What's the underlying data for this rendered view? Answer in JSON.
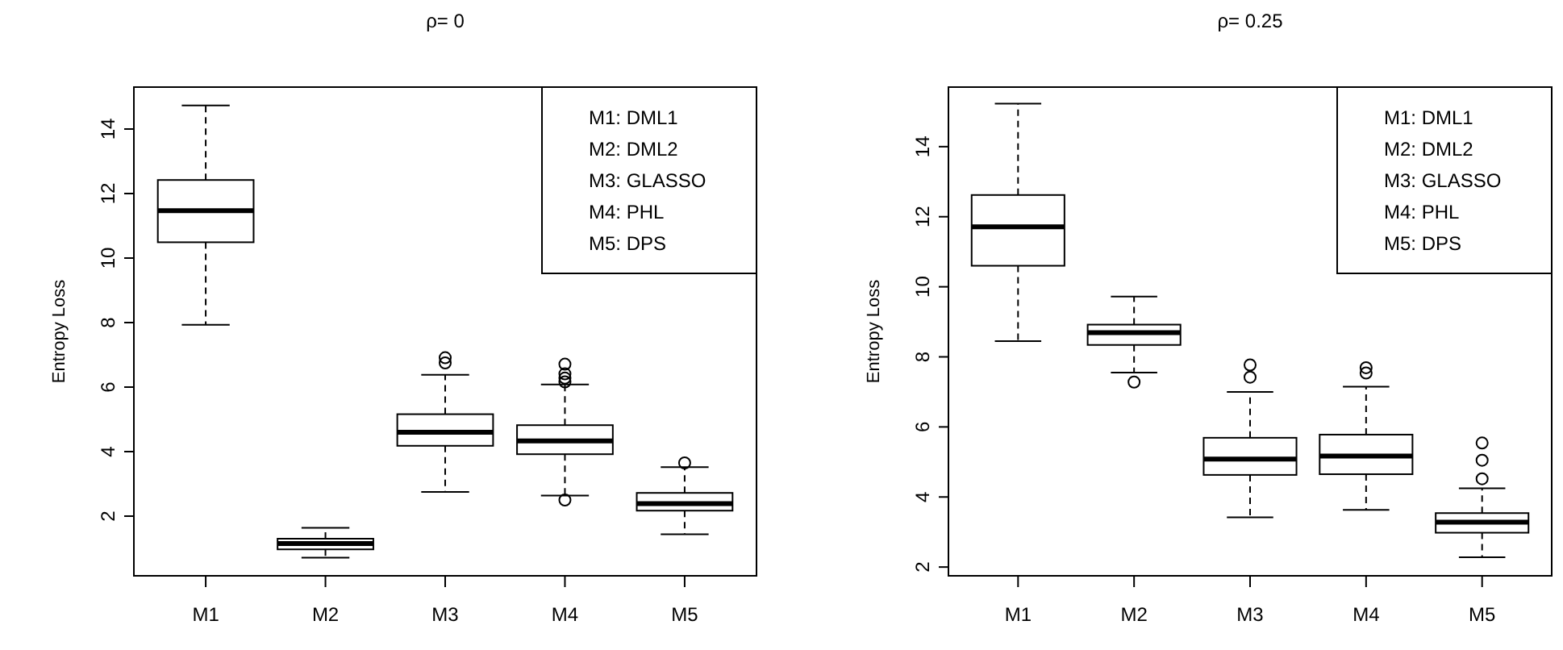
{
  "chart_data": [
    {
      "type": "box",
      "title": "ρ= 0",
      "ylabel": "Entropy Loss",
      "categories": [
        "M1",
        "M2",
        "M3",
        "M4",
        "M5"
      ],
      "ylim": [
        0.15,
        15.3
      ],
      "yticks": [
        2,
        4,
        6,
        8,
        10,
        12,
        14
      ],
      "grid": false,
      "annotations": [
        "M1: DML1",
        "M2: DML2",
        "M3: GLASSO",
        "M4: PHL",
        "M5: DPS"
      ],
      "boxes": [
        {
          "low": 7.93,
          "q1": 10.49,
          "median": 11.47,
          "q3": 12.42,
          "high": 14.73
        },
        {
          "low": 0.71,
          "q1": 0.97,
          "median": 1.15,
          "q3": 1.3,
          "high": 1.64
        },
        {
          "low": 2.75,
          "q1": 4.18,
          "median": 4.6,
          "q3": 5.16,
          "high": 6.38,
          "outliers": [
            6.75,
            6.91
          ]
        },
        {
          "low": 2.64,
          "q1": 3.92,
          "median": 4.33,
          "q3": 4.82,
          "high": 6.08,
          "outliers": [
            2.5,
            6.16,
            6.28,
            6.41,
            6.71
          ]
        },
        {
          "low": 1.44,
          "q1": 2.17,
          "median": 2.39,
          "q3": 2.72,
          "high": 3.52,
          "outliers": [
            3.65
          ]
        }
      ]
    },
    {
      "type": "box",
      "title": "ρ= 0.25",
      "ylabel": "Entropy Loss",
      "categories": [
        "M1",
        "M2",
        "M3",
        "M4",
        "M5"
      ],
      "ylim": [
        1.75,
        15.7
      ],
      "yticks": [
        2,
        4,
        6,
        8,
        10,
        12,
        14
      ],
      "grid": false,
      "annotations": [
        "M1: DML1",
        "M2: DML2",
        "M3: GLASSO",
        "M4: PHL",
        "M5: DPS"
      ],
      "boxes": [
        {
          "low": 8.45,
          "q1": 10.6,
          "median": 11.71,
          "q3": 12.62,
          "high": 15.23
        },
        {
          "low": 7.55,
          "q1": 8.34,
          "median": 8.69,
          "q3": 8.92,
          "high": 9.72,
          "outliers": [
            7.28
          ]
        },
        {
          "low": 3.42,
          "q1": 4.63,
          "median": 5.08,
          "q3": 5.69,
          "high": 7.0,
          "outliers": [
            7.42,
            7.77
          ]
        },
        {
          "low": 3.63,
          "q1": 4.65,
          "median": 5.17,
          "q3": 5.78,
          "high": 7.15,
          "outliers": [
            7.54,
            7.69
          ]
        },
        {
          "low": 2.28,
          "q1": 2.98,
          "median": 3.28,
          "q3": 3.54,
          "high": 4.25,
          "outliers": [
            4.52,
            5.05,
            5.54
          ]
        }
      ]
    }
  ]
}
